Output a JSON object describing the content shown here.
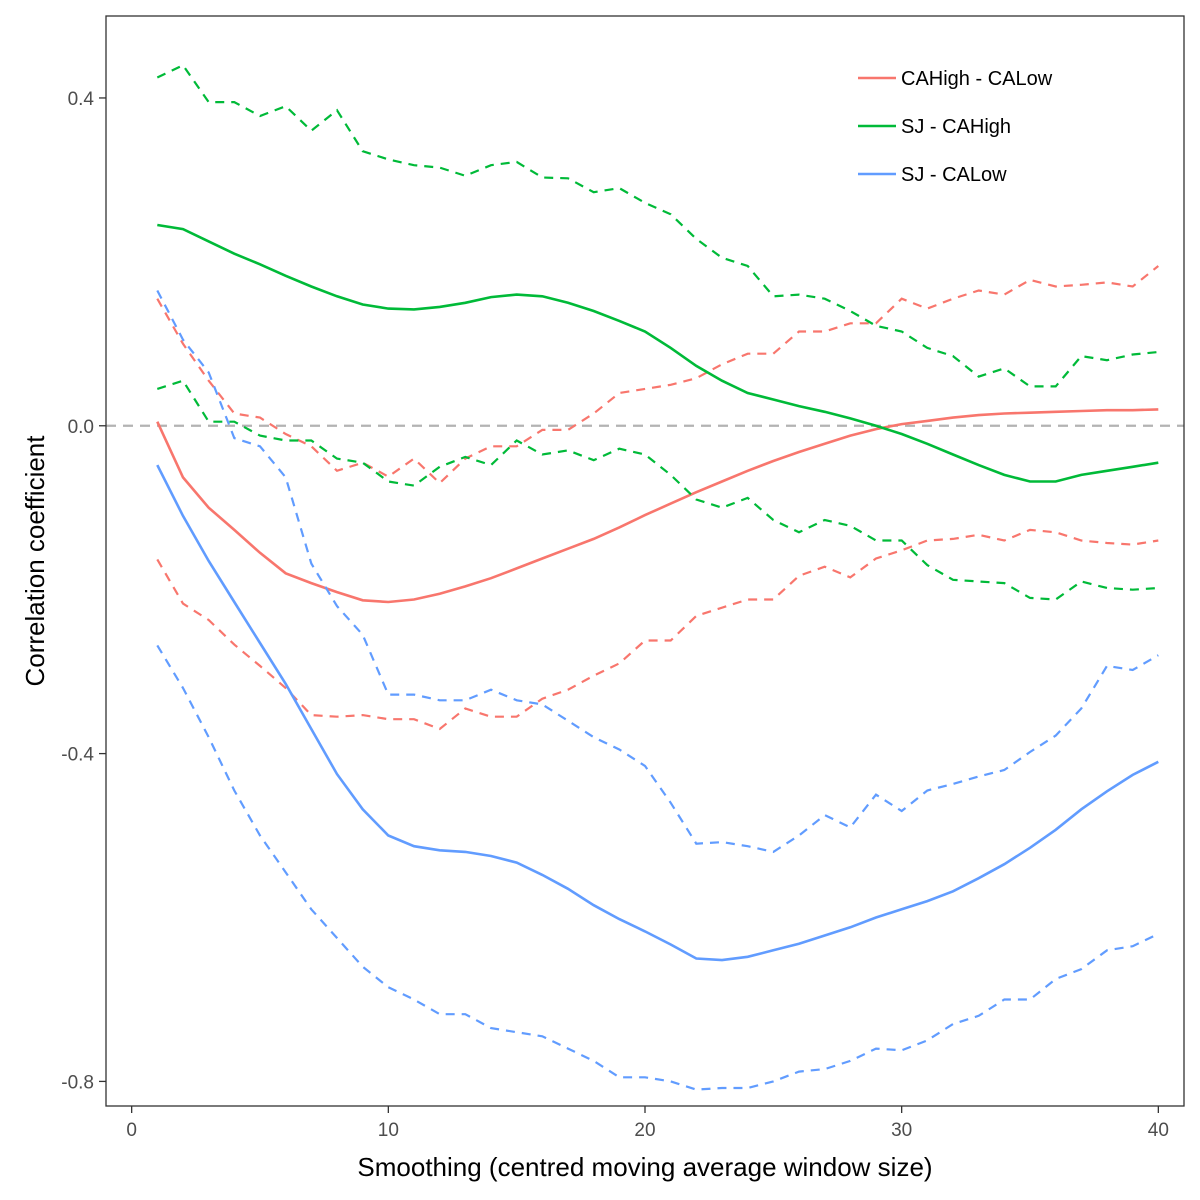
{
  "chart_data": {
    "type": "line",
    "title": "",
    "xlabel": "Smoothing (centred moving average window size)",
    "ylabel": "Correlation coefficient",
    "xlim": [
      -1,
      41
    ],
    "ylim": [
      -0.83,
      0.5
    ],
    "xticks": [
      0,
      10,
      20,
      30,
      40
    ],
    "xtick_labels": [
      "0",
      "10",
      "20",
      "30",
      "40"
    ],
    "yticks": [
      -0.8,
      -0.4,
      0.0,
      0.4
    ],
    "ytick_labels": [
      "-0.8",
      "-0.4",
      "0.0",
      "0.4"
    ],
    "grid": false,
    "legend_position": "top-right",
    "reference_line": {
      "y": 0,
      "style": "dashed",
      "color": "#b3b3b3"
    },
    "x": [
      1,
      2,
      3,
      4,
      5,
      6,
      7,
      8,
      9,
      10,
      11,
      12,
      13,
      14,
      15,
      16,
      17,
      18,
      19,
      20,
      21,
      22,
      23,
      24,
      25,
      26,
      27,
      28,
      29,
      30,
      31,
      32,
      33,
      34,
      35,
      36,
      37,
      38,
      39,
      40
    ],
    "series": [
      {
        "name": "CAHigh - CALow",
        "color": "#f8766d",
        "values": [
          0.005,
          -0.063,
          -0.1,
          -0.127,
          -0.155,
          -0.18,
          -0.192,
          -0.203,
          -0.213,
          -0.215,
          -0.212,
          -0.205,
          -0.196,
          -0.186,
          -0.174,
          -0.162,
          -0.15,
          -0.138,
          -0.124,
          -0.109,
          -0.095,
          -0.081,
          -0.068,
          -0.055,
          -0.043,
          -0.032,
          -0.022,
          -0.012,
          -0.004,
          0.002,
          0.006,
          0.01,
          0.013,
          0.015,
          0.016,
          0.017,
          0.018,
          0.019,
          0.019,
          0.02
        ],
        "lower": [
          -0.163,
          -0.217,
          -0.237,
          -0.267,
          -0.293,
          -0.32,
          -0.353,
          -0.355,
          -0.353,
          -0.358,
          -0.358,
          -0.37,
          -0.345,
          -0.355,
          -0.355,
          -0.333,
          -0.322,
          -0.305,
          -0.29,
          -0.262,
          -0.262,
          -0.232,
          -0.222,
          -0.212,
          -0.212,
          -0.183,
          -0.172,
          -0.185,
          -0.162,
          -0.152,
          -0.14,
          -0.138,
          -0.133,
          -0.14,
          -0.127,
          -0.13,
          -0.14,
          -0.143,
          -0.145,
          -0.14
        ],
        "upper": [
          0.155,
          0.1,
          0.055,
          0.015,
          0.01,
          -0.01,
          -0.025,
          -0.055,
          -0.045,
          -0.062,
          -0.04,
          -0.07,
          -0.04,
          -0.025,
          -0.025,
          -0.005,
          -0.005,
          0.015,
          0.04,
          0.045,
          0.05,
          0.058,
          0.075,
          0.088,
          0.088,
          0.115,
          0.115,
          0.125,
          0.125,
          0.155,
          0.143,
          0.155,
          0.165,
          0.16,
          0.178,
          0.17,
          0.172,
          0.175,
          0.17,
          0.195
        ]
      },
      {
        "name": "SJ - CAHigh",
        "color": "#00ba38",
        "values": [
          0.245,
          0.24,
          0.225,
          0.21,
          0.197,
          0.183,
          0.17,
          0.158,
          0.148,
          0.143,
          0.142,
          0.145,
          0.15,
          0.157,
          0.16,
          0.158,
          0.15,
          0.14,
          0.128,
          0.115,
          0.095,
          0.073,
          0.055,
          0.04,
          0.032,
          0.024,
          0.017,
          0.009,
          0.0,
          -0.01,
          -0.022,
          -0.035,
          -0.048,
          -0.06,
          -0.068,
          -0.068,
          -0.06,
          -0.055,
          -0.05,
          -0.045
        ],
        "lower": [
          0.045,
          0.055,
          0.005,
          0.005,
          -0.012,
          -0.018,
          -0.018,
          -0.04,
          -0.045,
          -0.068,
          -0.073,
          -0.05,
          -0.038,
          -0.048,
          -0.018,
          -0.035,
          -0.03,
          -0.042,
          -0.028,
          -0.035,
          -0.06,
          -0.09,
          -0.1,
          -0.088,
          -0.115,
          -0.13,
          -0.115,
          -0.122,
          -0.14,
          -0.14,
          -0.17,
          -0.188,
          -0.19,
          -0.192,
          -0.21,
          -0.212,
          -0.19,
          -0.198,
          -0.2,
          -0.198
        ],
        "upper": [
          0.425,
          0.44,
          0.395,
          0.395,
          0.378,
          0.39,
          0.36,
          0.385,
          0.335,
          0.325,
          0.318,
          0.315,
          0.305,
          0.318,
          0.322,
          0.303,
          0.302,
          0.285,
          0.29,
          0.272,
          0.258,
          0.228,
          0.205,
          0.195,
          0.158,
          0.16,
          0.155,
          0.14,
          0.122,
          0.115,
          0.095,
          0.085,
          0.06,
          0.07,
          0.048,
          0.048,
          0.085,
          0.08,
          0.087,
          0.09
        ]
      },
      {
        "name": "SJ - CALow",
        "color": "#619cff",
        "values": [
          -0.048,
          -0.11,
          -0.165,
          -0.215,
          -0.265,
          -0.315,
          -0.37,
          -0.425,
          -0.468,
          -0.5,
          -0.513,
          -0.518,
          -0.52,
          -0.525,
          -0.533,
          -0.548,
          -0.565,
          -0.585,
          -0.602,
          -0.617,
          -0.633,
          -0.65,
          -0.652,
          -0.648,
          -0.64,
          -0.632,
          -0.622,
          -0.612,
          -0.6,
          -0.59,
          -0.58,
          -0.568,
          -0.552,
          -0.535,
          -0.515,
          -0.493,
          -0.468,
          -0.446,
          -0.426,
          -0.41
        ],
        "lower": [
          -0.268,
          -0.32,
          -0.38,
          -0.445,
          -0.5,
          -0.545,
          -0.59,
          -0.625,
          -0.66,
          -0.685,
          -0.7,
          -0.718,
          -0.718,
          -0.735,
          -0.74,
          -0.745,
          -0.76,
          -0.775,
          -0.795,
          -0.795,
          -0.8,
          -0.81,
          -0.808,
          -0.808,
          -0.8,
          -0.788,
          -0.785,
          -0.775,
          -0.76,
          -0.762,
          -0.75,
          -0.73,
          -0.72,
          -0.7,
          -0.7,
          -0.675,
          -0.663,
          -0.64,
          -0.635,
          -0.62
        ],
        "upper": [
          0.165,
          0.105,
          0.065,
          -0.015,
          -0.025,
          -0.063,
          -0.168,
          -0.22,
          -0.255,
          -0.328,
          -0.328,
          -0.335,
          -0.335,
          -0.322,
          -0.335,
          -0.34,
          -0.36,
          -0.38,
          -0.395,
          -0.415,
          -0.46,
          -0.51,
          -0.508,
          -0.513,
          -0.52,
          -0.5,
          -0.475,
          -0.49,
          -0.45,
          -0.47,
          -0.445,
          -0.437,
          -0.428,
          -0.42,
          -0.398,
          -0.378,
          -0.345,
          -0.293,
          -0.298,
          -0.28
        ]
      }
    ]
  }
}
